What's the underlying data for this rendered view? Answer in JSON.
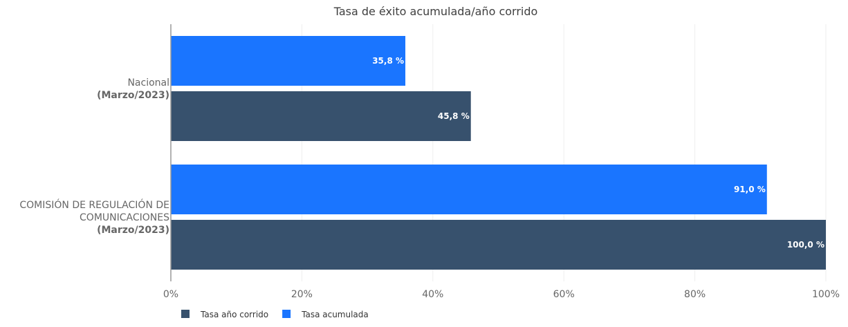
{
  "chart_data": {
    "type": "bar",
    "orientation": "horizontal",
    "title": "Tasa de éxito acumulada/año corrido",
    "categories": [
      {
        "lines": [
          "Nacional"
        ],
        "bold": "(Marzo/2023)"
      },
      {
        "lines": [
          "COMISIÓN DE REGULACIÓN DE",
          "COMUNICACIONES"
        ],
        "bold": "(Marzo/2023)"
      }
    ],
    "series": [
      {
        "name": "Tasa acumulada",
        "color": "#1a75ff",
        "values": [
          35.8,
          91.0
        ],
        "labels": [
          "35,8 %",
          "91,0 %"
        ]
      },
      {
        "name": "Tasa año corrido",
        "color": "#37516d",
        "values": [
          45.8,
          100.0
        ],
        "labels": [
          "45,8 %",
          "100,0 %"
        ]
      }
    ],
    "xlim": [
      0,
      100
    ],
    "xticks": [
      0,
      20,
      40,
      60,
      80,
      100
    ],
    "xtick_labels": [
      "0%",
      "20%",
      "40%",
      "60%",
      "80%",
      "100%"
    ],
    "grid": true,
    "legend": {
      "position": "bottom",
      "order": [
        "Tasa año corrido",
        "Tasa acumulada"
      ]
    }
  }
}
